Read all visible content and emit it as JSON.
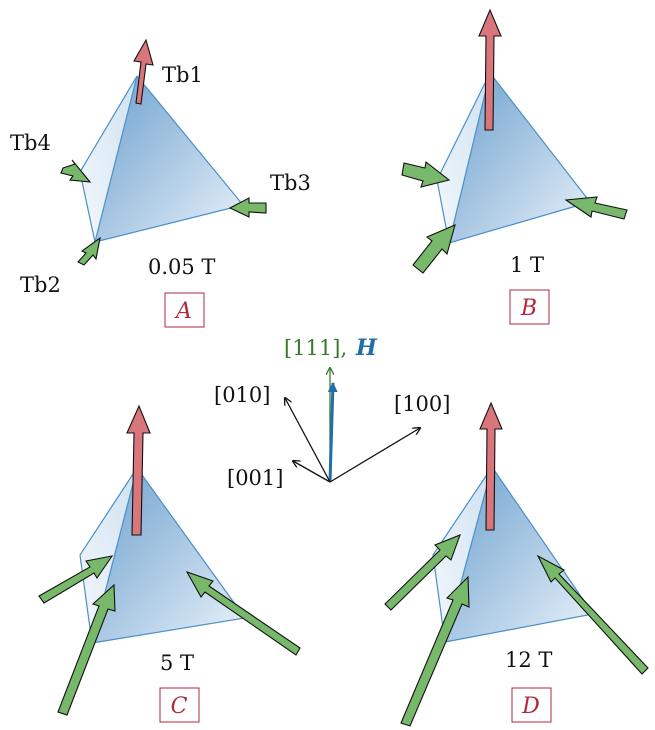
{
  "colors": {
    "red_arrow": "#d9767b",
    "green_arrow": "#78b86a",
    "tetra_edge": "#4a8fc9",
    "tetra_fill_dark": "#5b95c8",
    "tetra_fill_light": "#eaf2fa",
    "panel_letter": "#b0283c",
    "axis_111": "#3a7a2c",
    "axis_H": "#1f6fa8"
  },
  "panels": [
    {
      "id": "A",
      "letter": "A",
      "field": "0.05 T",
      "site_labels": {
        "tb1": "Tb1",
        "tb2": "Tb2",
        "tb3": "Tb3",
        "tb4": "Tb4"
      }
    },
    {
      "id": "B",
      "letter": "B",
      "field": "1 T"
    },
    {
      "id": "C",
      "letter": "C",
      "field": "5 T"
    },
    {
      "id": "D",
      "letter": "D",
      "field": "12 T"
    }
  ],
  "axes": {
    "a111": "[111],",
    "H": "H",
    "a010": "[010]",
    "a100": "[100]",
    "a001": "[001]"
  }
}
